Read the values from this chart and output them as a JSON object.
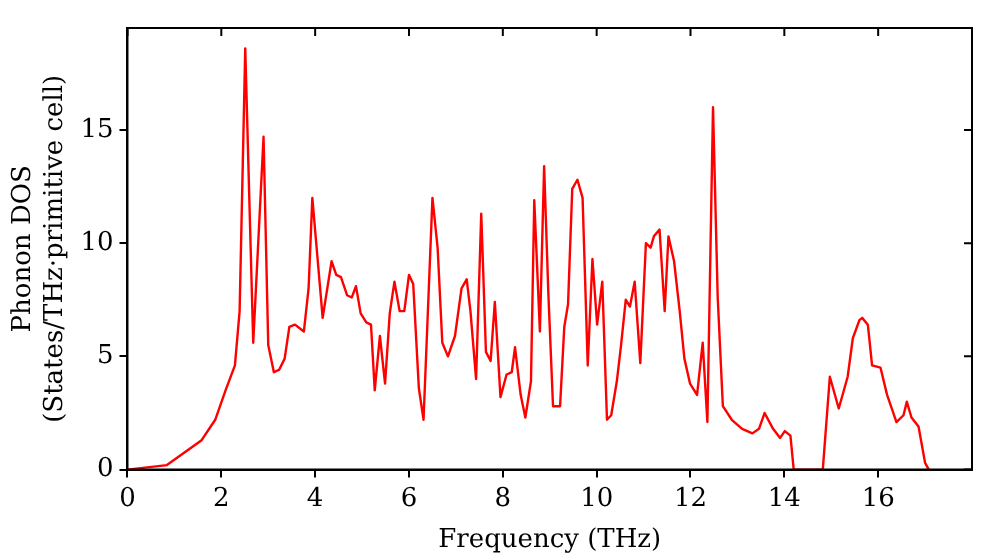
{
  "chart_data": {
    "type": "line",
    "xlabel": "Frequency (THz)",
    "ylabel": "Phonon DOS\n(States/THz·primitive cell)",
    "xlim": [
      0,
      18
    ],
    "xticks": [
      0,
      2,
      4,
      6,
      8,
      10,
      12,
      14,
      16
    ],
    "ylim": [
      0,
      19.5
    ],
    "yticks": [
      0,
      5,
      10,
      15
    ],
    "grid": false,
    "legend": false,
    "marker": "none",
    "line_style": "solid",
    "series": [
      {
        "color": "#ff0000",
        "x": [
          0,
          0.84,
          1.58,
          1.87,
          2.09,
          2.29,
          2.39,
          2.51,
          2.68,
          2.9,
          3.0,
          3.12,
          3.23,
          3.35,
          3.45,
          3.57,
          3.76,
          3.86,
          3.94,
          4.16,
          4.35,
          4.45,
          4.55,
          4.68,
          4.78,
          4.87,
          4.97,
          5.09,
          5.19,
          5.27,
          5.38,
          5.49,
          5.59,
          5.69,
          5.8,
          5.9,
          6.0,
          6.09,
          6.21,
          6.31,
          6.5,
          6.61,
          6.71,
          6.83,
          6.98,
          7.12,
          7.23,
          7.31,
          7.43,
          7.54,
          7.64,
          7.74,
          7.83,
          7.95,
          8.08,
          8.19,
          8.26,
          8.38,
          8.48,
          8.6,
          8.67,
          8.79,
          8.88,
          8.97,
          9.07,
          9.22,
          9.31,
          9.39,
          9.48,
          9.59,
          9.7,
          9.81,
          9.91,
          10.01,
          10.12,
          10.22,
          10.31,
          10.43,
          10.52,
          10.62,
          10.71,
          10.81,
          10.93,
          11.05,
          11.15,
          11.22,
          11.34,
          11.45,
          11.53,
          11.65,
          11.77,
          11.87,
          11.99,
          12.14,
          12.26,
          12.36,
          12.48,
          12.58,
          12.69,
          12.88,
          13.1,
          13.32,
          13.46,
          13.58,
          13.76,
          13.91,
          14.01,
          14.13,
          14.2,
          14.82,
          14.97,
          15.16,
          15.35,
          15.46,
          15.6,
          15.66,
          15.78,
          15.87,
          16.05,
          16.19,
          16.39,
          16.54,
          16.61,
          16.71,
          16.86,
          17.0,
          17.08
        ],
        "values": [
          0,
          0.2,
          1.3,
          2.2,
          3.5,
          4.6,
          7.0,
          18.6,
          5.6,
          14.7,
          5.5,
          4.3,
          4.4,
          4.9,
          6.3,
          6.4,
          6.1,
          8.0,
          12.0,
          6.7,
          9.2,
          8.6,
          8.5,
          7.7,
          7.6,
          8.1,
          6.9,
          6.5,
          6.4,
          3.5,
          5.9,
          3.8,
          6.9,
          8.3,
          7.0,
          7.0,
          8.6,
          8.2,
          3.6,
          2.2,
          12.0,
          9.8,
          5.6,
          5.0,
          5.9,
          8.0,
          8.4,
          7.0,
          4.0,
          11.3,
          5.2,
          4.8,
          7.4,
          3.2,
          4.2,
          4.3,
          5.4,
          3.3,
          2.3,
          3.9,
          11.9,
          6.1,
          13.4,
          7.8,
          2.8,
          2.8,
          6.3,
          7.3,
          12.4,
          12.8,
          12.0,
          4.6,
          9.3,
          6.4,
          8.3,
          2.2,
          2.4,
          3.9,
          5.5,
          7.5,
          7.2,
          8.3,
          4.7,
          10.0,
          9.8,
          10.3,
          10.6,
          7.0,
          10.3,
          9.2,
          7.0,
          4.9,
          3.8,
          3.3,
          5.6,
          2.1,
          16.0,
          7.6,
          2.8,
          2.2,
          1.8,
          1.6,
          1.8,
          2.5,
          1.8,
          1.4,
          1.7,
          1.5,
          0,
          0,
          4.1,
          2.7,
          4.1,
          5.8,
          6.6,
          6.7,
          6.4,
          4.6,
          4.5,
          3.3,
          2.1,
          2.4,
          3.0,
          2.3,
          1.9,
          0.3,
          0
        ]
      }
    ]
  }
}
